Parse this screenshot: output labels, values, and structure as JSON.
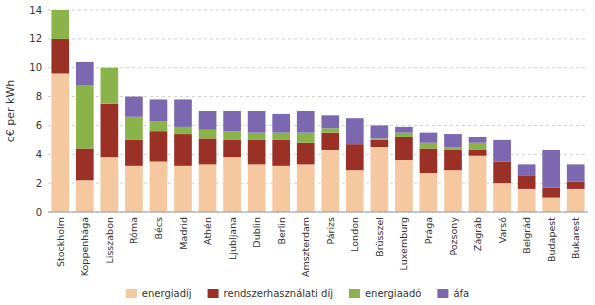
{
  "chart_data": {
    "type": "bar",
    "stacked": true,
    "categories": [
      "Stockholm",
      "Koppenhága",
      "Lisszabon",
      "Róma",
      "Bécs",
      "Madrid",
      "Athén",
      "Ljubljana",
      "Dublin",
      "Berlin",
      "Amszterdam",
      "Párizs",
      "London",
      "Brüsszel",
      "Luxemburg",
      "Prága",
      "Pozsony",
      "Zágráb",
      "Varsó",
      "Belgrád",
      "Budapest",
      "Bukarest"
    ],
    "series": [
      {
        "name": "energiadíj",
        "color": "#f5c8a0",
        "values": [
          9.6,
          2.2,
          3.8,
          3.2,
          3.5,
          3.2,
          3.3,
          3.8,
          3.3,
          3.2,
          3.3,
          4.3,
          2.9,
          4.5,
          3.6,
          2.7,
          2.9,
          3.9,
          2.0,
          1.6,
          1.0,
          1.6
        ]
      },
      {
        "name": "rendszerhasználati díj",
        "color": "#9b3026",
        "values": [
          2.4,
          2.2,
          3.7,
          1.8,
          2.1,
          2.2,
          1.8,
          1.2,
          1.7,
          1.8,
          1.5,
          1.2,
          1.8,
          0.5,
          1.6,
          1.7,
          1.4,
          0.4,
          1.5,
          0.9,
          0.7,
          0.5
        ]
      },
      {
        "name": "energiaadó",
        "color": "#8ab44a",
        "values": [
          2.0,
          4.4,
          2.5,
          1.6,
          0.7,
          0.5,
          0.6,
          0.6,
          0.5,
          0.5,
          0.7,
          0.3,
          0.0,
          0.1,
          0.3,
          0.4,
          0.2,
          0.5,
          0.0,
          0.0,
          0.0,
          0.0
        ]
      },
      {
        "name": "áfa",
        "color": "#7b68b0",
        "values": [
          0.0,
          1.6,
          0.0,
          1.4,
          1.5,
          1.9,
          1.3,
          1.4,
          1.5,
          1.3,
          1.5,
          0.9,
          1.8,
          0.9,
          0.4,
          0.7,
          0.9,
          0.4,
          1.5,
          0.8,
          2.6,
          1.2
        ]
      }
    ],
    "ylabel": "c€ per kWh",
    "ylim": [
      0,
      14
    ],
    "yticks": [
      0,
      2,
      4,
      6,
      8,
      10,
      12,
      14
    ],
    "grid": true,
    "legend": "bottom"
  }
}
